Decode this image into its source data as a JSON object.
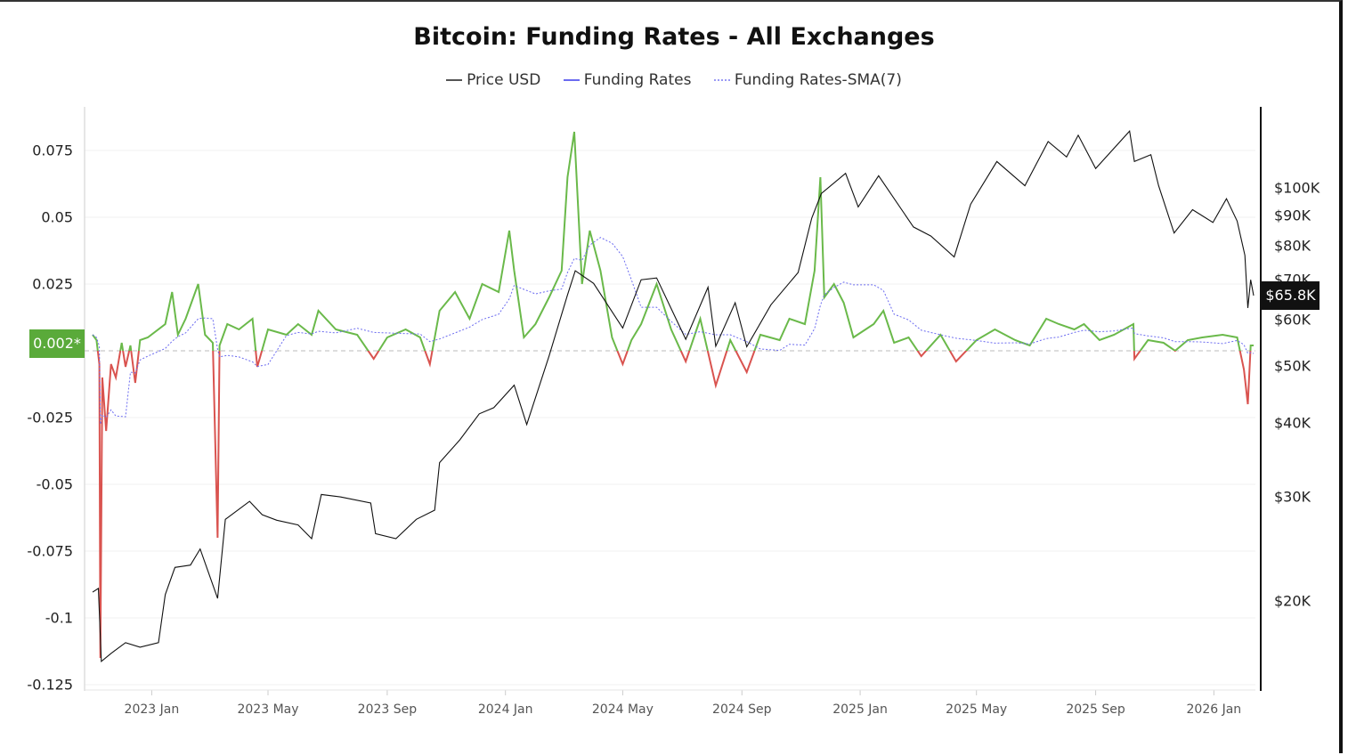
{
  "title": "Bitcoin: Funding Rates - All Exchanges",
  "legend": [
    {
      "label": "Price USD",
      "color": "#555555",
      "style": "solid"
    },
    {
      "label": "Funding Rates",
      "color": "#6b6bf0",
      "style": "solid"
    },
    {
      "label": "Funding Rates-SMA(7)",
      "color": "#9a9af5",
      "style": "dotted"
    }
  ],
  "badges": {
    "zero_label": "0.002*",
    "last_price": "$65.8K"
  },
  "colors": {
    "positive": "#6ab94a",
    "negative": "#d9534f",
    "price": "#111111",
    "sma": "#6b6bf0",
    "zero_badge": "#5aaa3a"
  },
  "chart_data": {
    "type": "line",
    "title": "Bitcoin: Funding Rates - All Exchanges",
    "x_range": [
      "2022-11-01",
      "2026-02-11"
    ],
    "left_axis": {
      "ticks": [
        0.075,
        0.05,
        0.025,
        -0.025,
        -0.05,
        -0.075,
        -0.1,
        -0.125
      ],
      "tick_labels": [
        "0.075",
        "0.05",
        "0.025",
        "-0.025",
        "-0.05",
        "-0.075",
        "-0.1",
        "-0.125"
      ],
      "range": [
        -0.125,
        0.09
      ]
    },
    "right_axis": {
      "scale": "log",
      "ticks": [
        100000,
        90000,
        80000,
        70000,
        60000,
        50000,
        40000,
        30000,
        20000
      ],
      "tick_labels": [
        "$100K",
        "$90K",
        "$80K",
        "$70K",
        "$60K",
        "$50K",
        "$40K",
        "$30K",
        "$20K"
      ]
    },
    "x_ticks": [
      {
        "date": "2023-01-01",
        "label": "2023 Jan"
      },
      {
        "date": "2023-05-01",
        "label": "2023 May"
      },
      {
        "date": "2023-09-01",
        "label": "2023 Sep"
      },
      {
        "date": "2024-01-01",
        "label": "2024 Jan"
      },
      {
        "date": "2024-05-01",
        "label": "2024 May"
      },
      {
        "date": "2024-09-01",
        "label": "2024 Sep"
      },
      {
        "date": "2025-01-01",
        "label": "2025 Jan"
      },
      {
        "date": "2025-05-01",
        "label": "2025 May"
      },
      {
        "date": "2025-09-01",
        "label": "2025 Sep"
      },
      {
        "date": "2026-01-01",
        "label": "2026 Jan"
      }
    ],
    "grid": true,
    "legend_position": "top",
    "series": [
      {
        "name": "Price USD",
        "axis": "right",
        "points": [
          [
            "2022-11-01",
            20700
          ],
          [
            "2022-11-07",
            21000
          ],
          [
            "2022-11-10",
            15800
          ],
          [
            "2022-11-20",
            16300
          ],
          [
            "2022-12-05",
            17000
          ],
          [
            "2022-12-20",
            16700
          ],
          [
            "2023-01-08",
            17000
          ],
          [
            "2023-01-15",
            20500
          ],
          [
            "2023-01-25",
            22800
          ],
          [
            "2023-02-10",
            23000
          ],
          [
            "2023-02-20",
            24500
          ],
          [
            "2023-03-10",
            20200
          ],
          [
            "2023-03-18",
            27500
          ],
          [
            "2023-04-12",
            29500
          ],
          [
            "2023-04-25",
            28000
          ],
          [
            "2023-05-10",
            27400
          ],
          [
            "2023-06-01",
            26900
          ],
          [
            "2023-06-15",
            25500
          ],
          [
            "2023-06-25",
            30300
          ],
          [
            "2023-07-15",
            30000
          ],
          [
            "2023-08-15",
            29300
          ],
          [
            "2023-08-20",
            26000
          ],
          [
            "2023-09-10",
            25500
          ],
          [
            "2023-10-01",
            27500
          ],
          [
            "2023-10-20",
            28500
          ],
          [
            "2023-10-25",
            34300
          ],
          [
            "2023-11-15",
            37500
          ],
          [
            "2023-12-05",
            41500
          ],
          [
            "2023-12-20",
            42500
          ],
          [
            "2024-01-10",
            46400
          ],
          [
            "2024-01-23",
            39800
          ],
          [
            "2024-02-15",
            52000
          ],
          [
            "2024-03-05",
            66000
          ],
          [
            "2024-03-13",
            72500
          ],
          [
            "2024-04-01",
            69000
          ],
          [
            "2024-05-01",
            58000
          ],
          [
            "2024-05-20",
            70000
          ],
          [
            "2024-06-05",
            70500
          ],
          [
            "2024-07-05",
            55500
          ],
          [
            "2024-07-28",
            68000
          ],
          [
            "2024-08-05",
            54000
          ],
          [
            "2024-08-25",
            64000
          ],
          [
            "2024-09-06",
            53900
          ],
          [
            "2024-10-01",
            63500
          ],
          [
            "2024-10-29",
            72000
          ],
          [
            "2024-11-12",
            89000
          ],
          [
            "2024-11-22",
            98000
          ],
          [
            "2024-12-17",
            106000
          ],
          [
            "2024-12-30",
            93000
          ],
          [
            "2025-01-20",
            105000
          ],
          [
            "2025-02-25",
            86000
          ],
          [
            "2025-03-15",
            83000
          ],
          [
            "2025-04-08",
            76500
          ],
          [
            "2025-04-25",
            94000
          ],
          [
            "2025-05-22",
            111000
          ],
          [
            "2025-06-20",
            101000
          ],
          [
            "2025-07-14",
            120000
          ],
          [
            "2025-08-02",
            113000
          ],
          [
            "2025-08-14",
            123000
          ],
          [
            "2025-09-01",
            108000
          ],
          [
            "2025-10-06",
            125000
          ],
          [
            "2025-10-11",
            111000
          ],
          [
            "2025-10-28",
            114000
          ],
          [
            "2025-11-05",
            101000
          ],
          [
            "2025-11-21",
            84000
          ],
          [
            "2025-12-10",
            92000
          ],
          [
            "2025-12-31",
            87500
          ],
          [
            "2026-01-14",
            96000
          ],
          [
            "2026-01-25",
            88000
          ],
          [
            "2026-02-02",
            77000
          ],
          [
            "2026-02-05",
            62700
          ],
          [
            "2026-02-08",
            70000
          ],
          [
            "2026-02-11",
            65800
          ]
        ]
      },
      {
        "name": "Funding Rates",
        "axis": "left",
        "points": [
          [
            "2022-11-01",
            0.006
          ],
          [
            "2022-11-05",
            0.004
          ],
          [
            "2022-11-08",
            -0.005
          ],
          [
            "2022-11-09",
            -0.115
          ],
          [
            "2022-11-11",
            -0.01
          ],
          [
            "2022-11-15",
            -0.03
          ],
          [
            "2022-11-20",
            -0.005
          ],
          [
            "2022-11-25",
            -0.01
          ],
          [
            "2022-12-01",
            0.003
          ],
          [
            "2022-12-05",
            -0.006
          ],
          [
            "2022-12-10",
            0.002
          ],
          [
            "2022-12-15",
            -0.012
          ],
          [
            "2022-12-20",
            0.004
          ],
          [
            "2022-12-28",
            0.005
          ],
          [
            "2023-01-15",
            0.01
          ],
          [
            "2023-01-22",
            0.022
          ],
          [
            "2023-01-28",
            0.006
          ],
          [
            "2023-02-05",
            0.012
          ],
          [
            "2023-02-18",
            0.025
          ],
          [
            "2023-02-25",
            0.006
          ],
          [
            "2023-03-05",
            0.003
          ],
          [
            "2023-03-10",
            -0.07
          ],
          [
            "2023-03-12",
            0.002
          ],
          [
            "2023-03-20",
            0.01
          ],
          [
            "2023-04-01",
            0.008
          ],
          [
            "2023-04-15",
            0.012
          ],
          [
            "2023-04-20",
            -0.006
          ],
          [
            "2023-05-01",
            0.008
          ],
          [
            "2023-05-20",
            0.006
          ],
          [
            "2023-06-01",
            0.01
          ],
          [
            "2023-06-15",
            0.006
          ],
          [
            "2023-06-22",
            0.015
          ],
          [
            "2023-07-10",
            0.008
          ],
          [
            "2023-08-01",
            0.006
          ],
          [
            "2023-08-18",
            -0.003
          ],
          [
            "2023-09-01",
            0.005
          ],
          [
            "2023-09-20",
            0.008
          ],
          [
            "2023-10-05",
            0.005
          ],
          [
            "2023-10-15",
            -0.005
          ],
          [
            "2023-10-25",
            0.015
          ],
          [
            "2023-11-10",
            0.022
          ],
          [
            "2023-11-25",
            0.012
          ],
          [
            "2023-12-08",
            0.025
          ],
          [
            "2023-12-25",
            0.022
          ],
          [
            "2024-01-05",
            0.045
          ],
          [
            "2024-01-10",
            0.03
          ],
          [
            "2024-01-20",
            0.005
          ],
          [
            "2024-02-01",
            0.01
          ],
          [
            "2024-02-15",
            0.02
          ],
          [
            "2024-02-28",
            0.03
          ],
          [
            "2024-03-05",
            0.065
          ],
          [
            "2024-03-12",
            0.082
          ],
          [
            "2024-03-20",
            0.025
          ],
          [
            "2024-03-28",
            0.045
          ],
          [
            "2024-04-08",
            0.03
          ],
          [
            "2024-04-20",
            0.005
          ],
          [
            "2024-05-01",
            -0.005
          ],
          [
            "2024-05-10",
            0.004
          ],
          [
            "2024-05-20",
            0.01
          ],
          [
            "2024-06-05",
            0.025
          ],
          [
            "2024-06-20",
            0.008
          ],
          [
            "2024-07-05",
            -0.004
          ],
          [
            "2024-07-20",
            0.012
          ],
          [
            "2024-08-05",
            -0.013
          ],
          [
            "2024-08-20",
            0.004
          ],
          [
            "2024-09-06",
            -0.008
          ],
          [
            "2024-09-20",
            0.006
          ],
          [
            "2024-10-10",
            0.004
          ],
          [
            "2024-10-20",
            0.012
          ],
          [
            "2024-11-05",
            0.01
          ],
          [
            "2024-11-15",
            0.03
          ],
          [
            "2024-11-21",
            0.065
          ],
          [
            "2024-11-25",
            0.02
          ],
          [
            "2024-12-05",
            0.025
          ],
          [
            "2024-12-15",
            0.018
          ],
          [
            "2024-12-25",
            0.005
          ],
          [
            "2025-01-15",
            0.01
          ],
          [
            "2025-01-25",
            0.015
          ],
          [
            "2025-02-05",
            0.003
          ],
          [
            "2025-02-20",
            0.005
          ],
          [
            "2025-03-05",
            -0.002
          ],
          [
            "2025-03-25",
            0.006
          ],
          [
            "2025-04-10",
            -0.004
          ],
          [
            "2025-05-01",
            0.004
          ],
          [
            "2025-05-20",
            0.008
          ],
          [
            "2025-06-10",
            0.004
          ],
          [
            "2025-06-25",
            0.002
          ],
          [
            "2025-07-12",
            0.012
          ],
          [
            "2025-07-25",
            0.01
          ],
          [
            "2025-08-10",
            0.008
          ],
          [
            "2025-08-20",
            0.01
          ],
          [
            "2025-09-05",
            0.004
          ],
          [
            "2025-09-20",
            0.006
          ],
          [
            "2025-10-10",
            0.01
          ],
          [
            "2025-10-11",
            -0.003
          ],
          [
            "2025-10-25",
            0.004
          ],
          [
            "2025-11-10",
            0.003
          ],
          [
            "2025-11-22",
            0.0
          ],
          [
            "2025-12-05",
            0.004
          ],
          [
            "2025-12-20",
            0.005
          ],
          [
            "2026-01-10",
            0.006
          ],
          [
            "2026-01-25",
            0.005
          ],
          [
            "2026-02-01",
            -0.007
          ],
          [
            "2026-02-05",
            -0.02
          ],
          [
            "2026-02-08",
            0.002
          ],
          [
            "2026-02-11",
            0.002
          ]
        ]
      },
      {
        "name": "Funding Rates-SMA(7)",
        "axis": "left",
        "derived_from": "Funding Rates",
        "window": 7
      }
    ]
  }
}
